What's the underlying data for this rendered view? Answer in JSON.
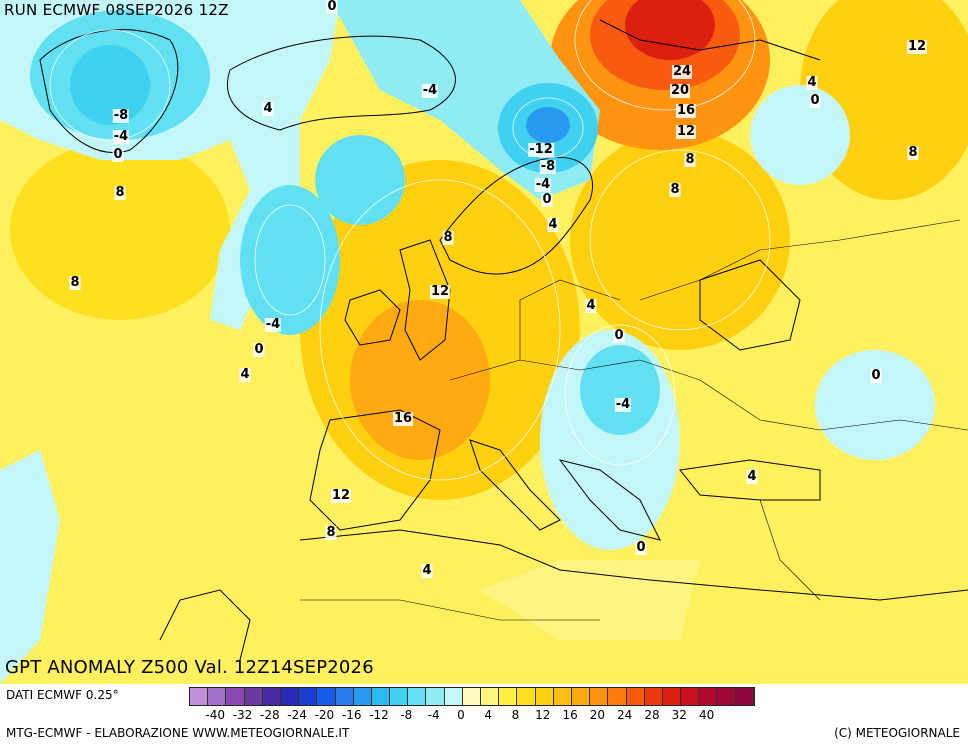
{
  "header": {
    "run": "RUN ECMWF 08SEP2026 12Z",
    "valid": "GPT ANOMALY Z500 Val. 12Z14SEP2026"
  },
  "footer": {
    "source": "DATI ECMWF 0.25°",
    "elaboration": "MTG-ECMWF - ELABORAZIONE WWW.METEOGIORNALE.IT",
    "copyright": "(C) METEOGIORNALE"
  },
  "legend": {
    "colors": [
      "#c090d8",
      "#a070c8",
      "#8a4ab0",
      "#6a3aa0",
      "#4a2aa0",
      "#2a2ab8",
      "#1a3ed0",
      "#1a5ae8",
      "#2a7af0",
      "#2a9af0",
      "#30b8f0",
      "#40d0f0",
      "#60e0f0",
      "#90ecf4",
      "#c4f6f8",
      "#fffbc0",
      "#fff580",
      "#fff040",
      "#ffe020",
      "#ffd010",
      "#ffbf10",
      "#ffaa10",
      "#ff9410",
      "#ff7a10",
      "#f85a10",
      "#ec3a10",
      "#dc2010",
      "#c81020",
      "#b00a30",
      "#a00838",
      "#900840"
    ],
    "ticks": [
      "-40",
      "-32",
      "-28",
      "-24",
      "-20",
      "-16",
      "-12",
      "-8",
      "-4",
      "0",
      "4",
      "8",
      "12",
      "16",
      "20",
      "24",
      "28",
      "32",
      "40"
    ]
  },
  "contour_labels": [
    {
      "text": "0"
    },
    {
      "text": "-8"
    },
    {
      "text": "-4"
    },
    {
      "text": "0"
    },
    {
      "text": "4"
    },
    {
      "text": "-4"
    },
    {
      "text": "8"
    },
    {
      "text": "8"
    },
    {
      "text": "-12"
    },
    {
      "text": "-8"
    },
    {
      "text": "-4"
    },
    {
      "text": "0"
    },
    {
      "text": "24"
    },
    {
      "text": "20"
    },
    {
      "text": "16"
    },
    {
      "text": "12"
    },
    {
      "text": "8"
    },
    {
      "text": "8"
    },
    {
      "text": "4"
    },
    {
      "text": "0"
    },
    {
      "text": "12"
    },
    {
      "text": "8"
    },
    {
      "text": "8"
    },
    {
      "text": "12"
    },
    {
      "text": "4"
    },
    {
      "text": "4"
    },
    {
      "text": "-4"
    },
    {
      "text": "0"
    },
    {
      "text": "4"
    },
    {
      "text": "0"
    },
    {
      "text": "-4"
    },
    {
      "text": "0"
    },
    {
      "text": "16"
    },
    {
      "text": "12"
    },
    {
      "text": "8"
    },
    {
      "text": "4"
    },
    {
      "text": "0"
    },
    {
      "text": "4"
    }
  ]
}
